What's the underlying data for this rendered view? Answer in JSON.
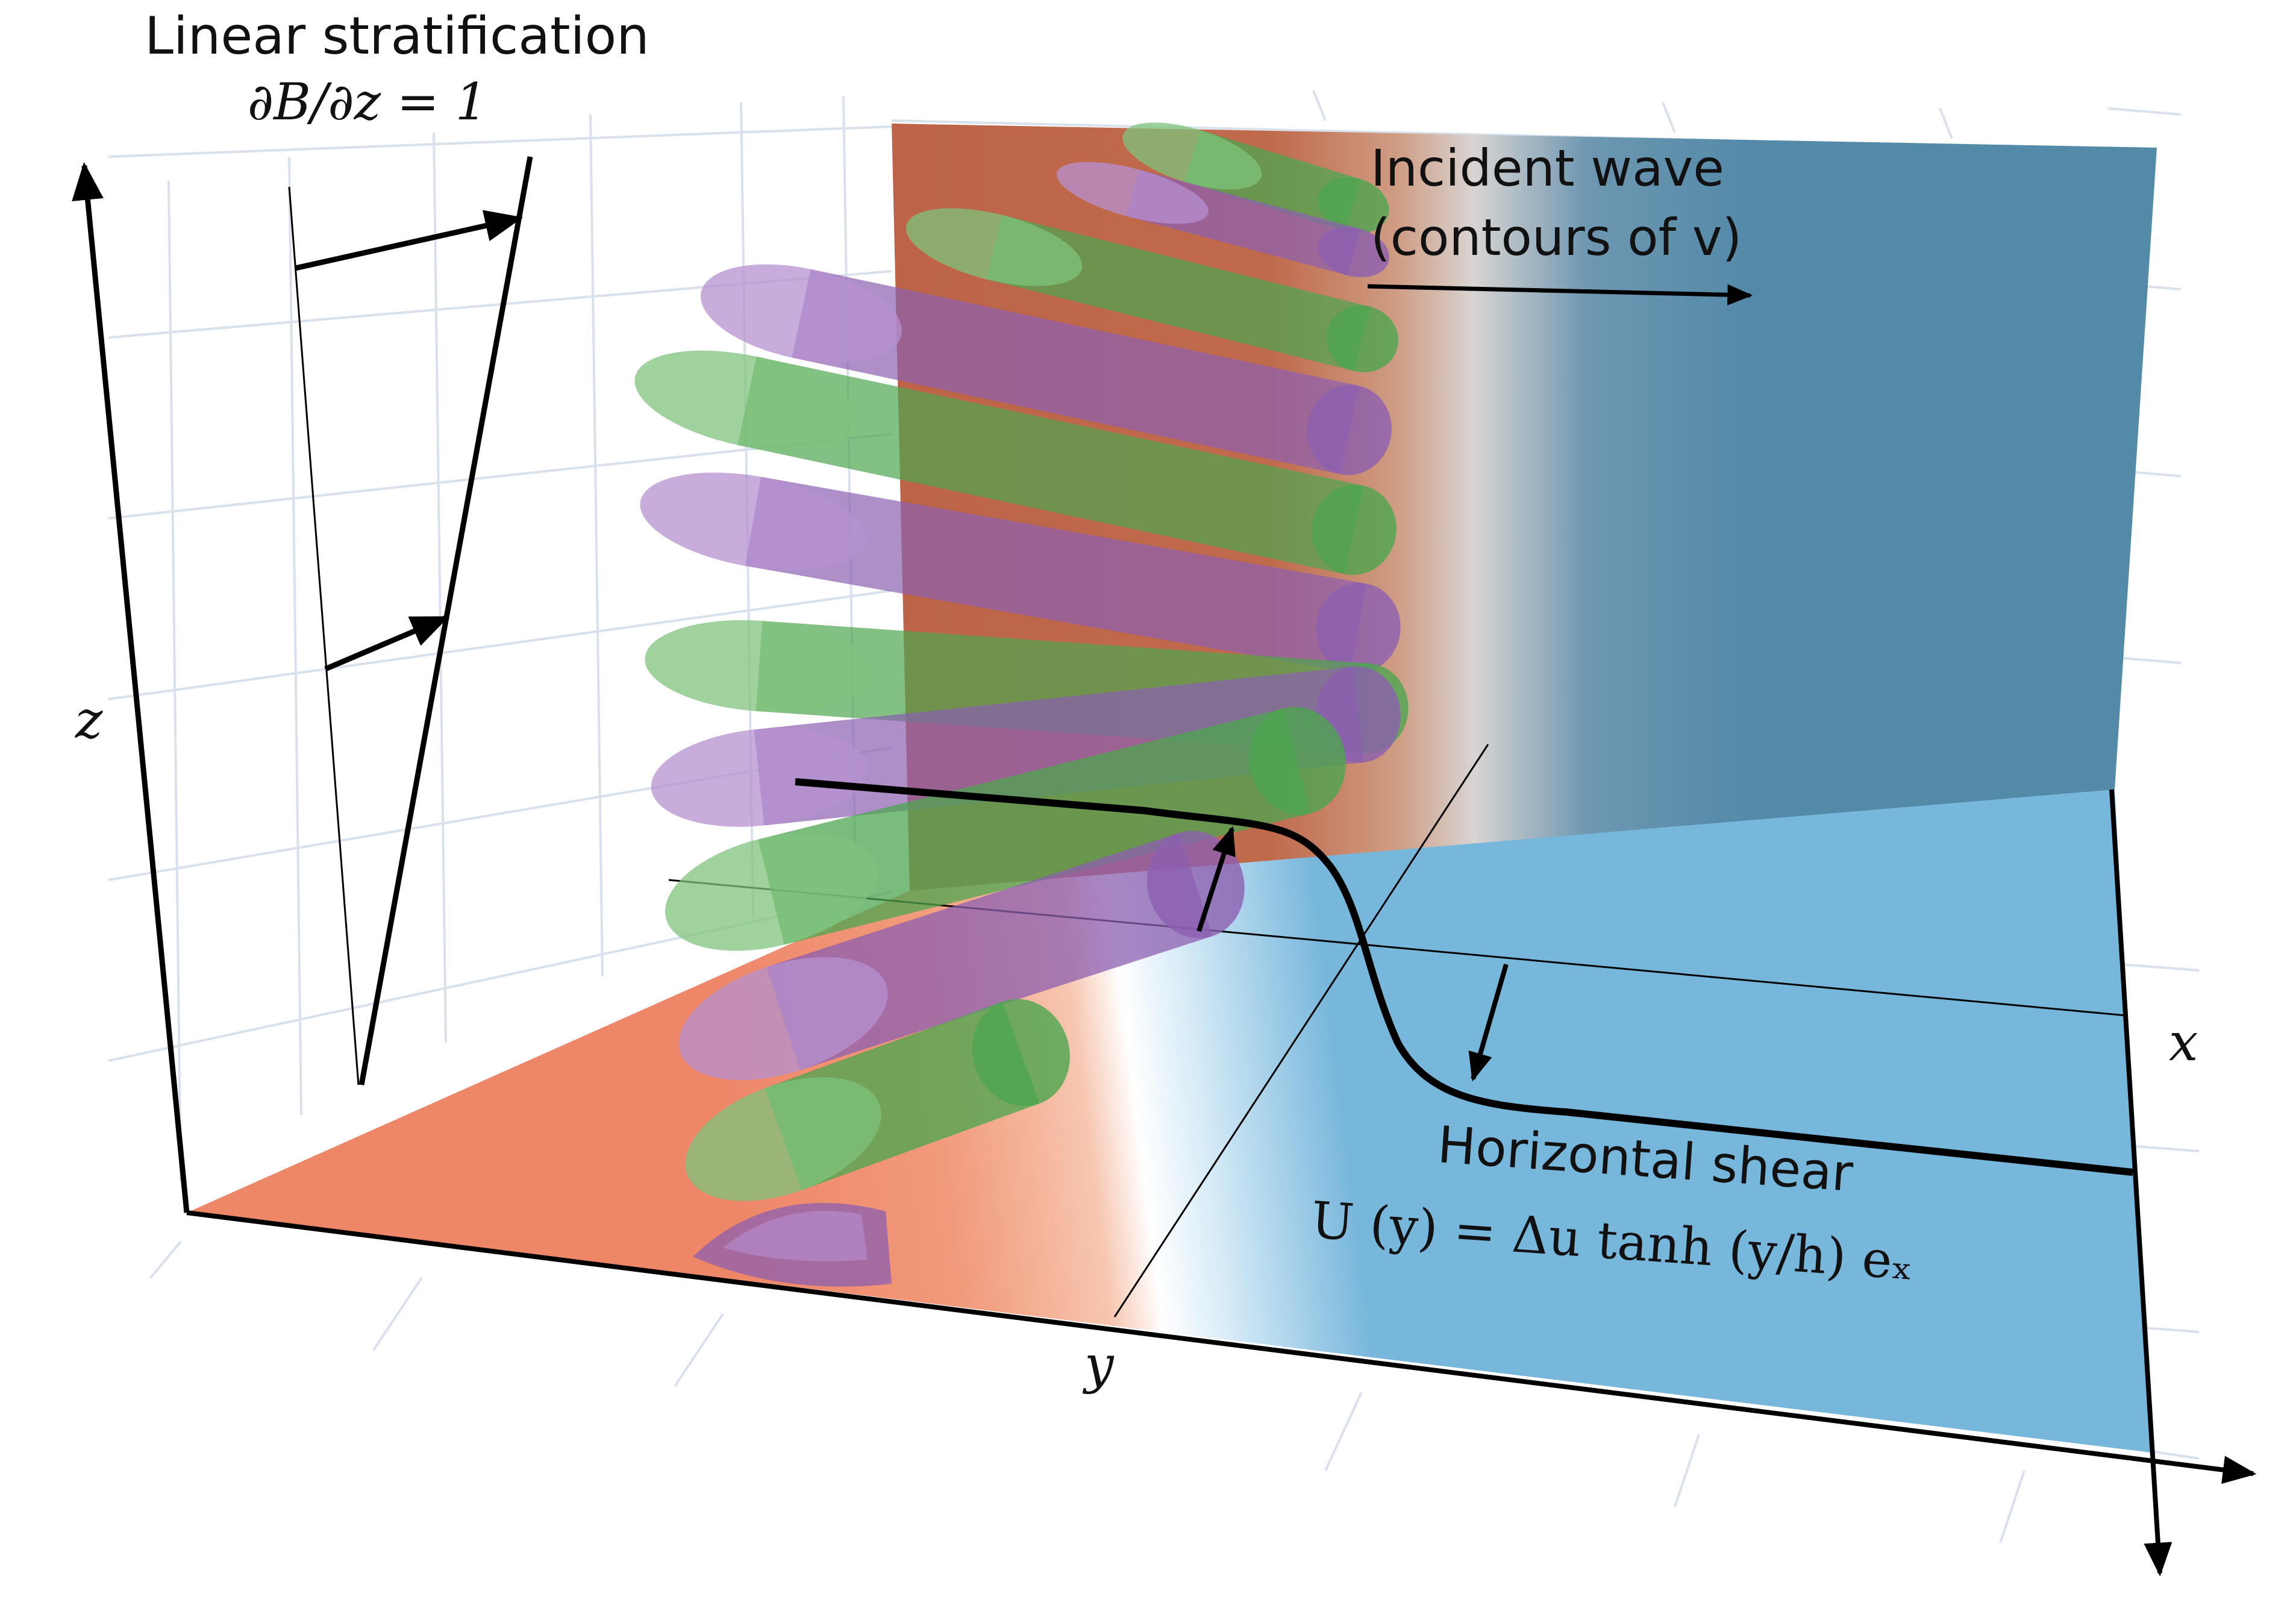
{
  "labels": {
    "stratification_title": "Linear stratification",
    "stratification_eq": "∂B/∂z = 1",
    "wave_title": "Incident wave",
    "wave_subtitle": "(contours of v)",
    "shear_title": "Horizontal shear",
    "shear_eq": "U (y) = Δu tanh (y/h) eₓ",
    "axis_x": "x",
    "axis_y": "y",
    "axis_z": "z"
  },
  "colors": {
    "warm": "#ee8668",
    "warm_light": "#f4a886",
    "cool": "#78b7dc",
    "back_warm": "#bd6448",
    "back_cool": "#538aa8",
    "green_tube": "#4ea550",
    "purple_tube": "#8c5fb0",
    "grid": "#d8e1ec"
  }
}
